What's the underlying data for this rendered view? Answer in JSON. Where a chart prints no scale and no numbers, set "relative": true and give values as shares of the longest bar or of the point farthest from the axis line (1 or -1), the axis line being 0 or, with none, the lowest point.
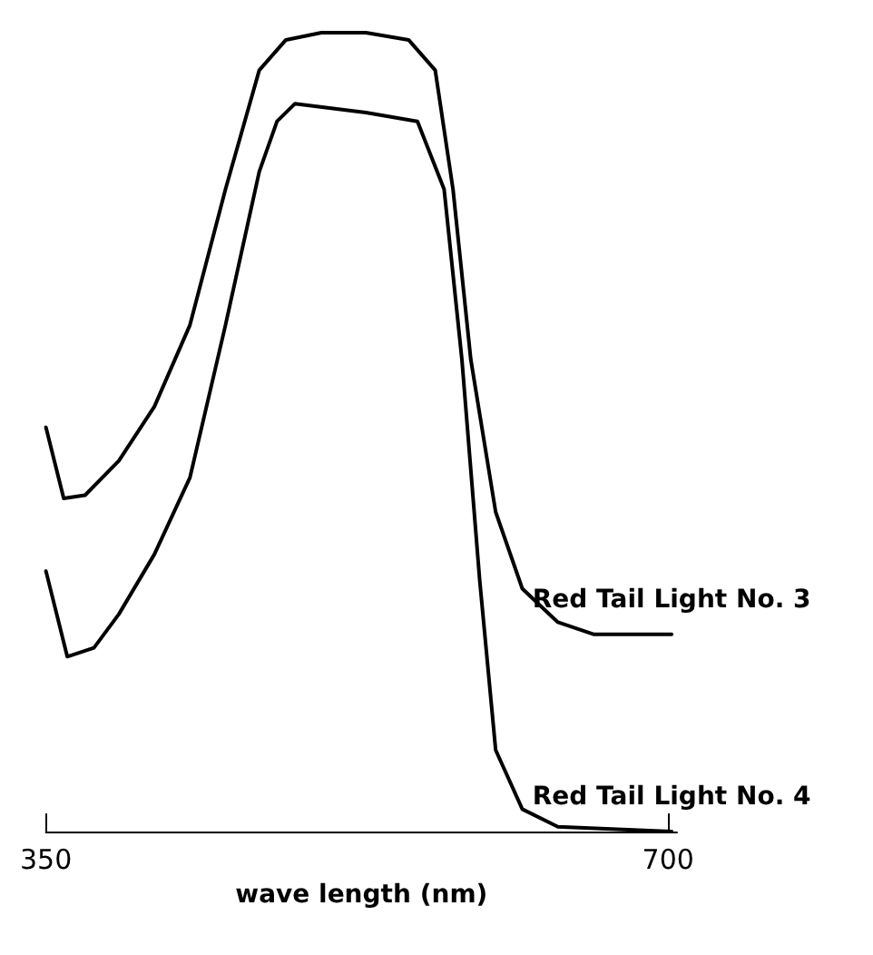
{
  "chart_data": {
    "type": "line",
    "relative": true,
    "xlabel": "wave length (nm)",
    "xlim": [
      350,
      705
    ],
    "xticks": [
      350,
      700
    ],
    "grid": false,
    "legend": false,
    "marker": "none",
    "line_style": "solid",
    "series": [
      {
        "name": "Red Tail Light No. 3",
        "color": "#000000",
        "x": [
          350,
          360,
          372,
          391,
          411,
          431,
          451,
          470,
          485,
          505,
          530,
          554,
          569,
          579,
          589,
          603,
          618,
          638,
          658,
          702
        ],
        "values": [
          0.506,
          0.417,
          0.421,
          0.464,
          0.532,
          0.634,
          0.804,
          0.953,
          0.991,
          1.0,
          1.0,
          0.991,
          0.953,
          0.804,
          0.591,
          0.4,
          0.304,
          0.262,
          0.247,
          0.247
        ]
      },
      {
        "name": "Red Tail Light No. 4",
        "color": "#000000",
        "x": [
          350,
          362,
          377,
          391,
          411,
          431,
          451,
          470,
          480,
          490,
          530,
          559,
          574,
          584,
          594,
          603,
          618,
          638,
          702
        ],
        "values": [
          0.326,
          0.219,
          0.23,
          0.272,
          0.347,
          0.443,
          0.634,
          0.826,
          0.889,
          0.911,
          0.9,
          0.889,
          0.804,
          0.591,
          0.315,
          0.102,
          0.028,
          0.006,
          0
        ]
      }
    ]
  }
}
